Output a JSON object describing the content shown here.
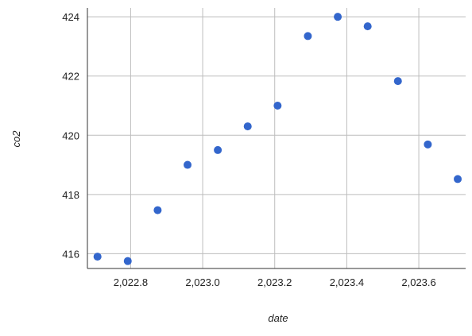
{
  "chart_data": {
    "type": "scatter",
    "title": "",
    "xlabel": "date",
    "ylabel": "co2",
    "xlim": [
      2022.68,
      2023.73
    ],
    "ylim": [
      415.5,
      424.3
    ],
    "grid": true,
    "legend": "none",
    "colors": {
      "point": "#3366cc",
      "grid": "#bdbdbd",
      "axis": "#333333"
    },
    "x_ticks": [
      2022.8,
      2023.0,
      2023.2,
      2023.4,
      2023.6
    ],
    "x_tick_labels": [
      "2,022.8",
      "2,023.0",
      "2,023.2",
      "2,023.4",
      "2,023.6"
    ],
    "y_ticks": [
      416,
      418,
      420,
      422,
      424
    ],
    "y_tick_labels": [
      "416",
      "418",
      "420",
      "422",
      "424"
    ],
    "series": [
      {
        "x": [
          2022.708,
          2022.792,
          2022.875,
          2022.958,
          2023.042,
          2023.125,
          2023.208,
          2023.292,
          2023.375,
          2023.458,
          2023.542,
          2023.625,
          2023.708
        ],
        "y": [
          415.9,
          415.75,
          417.47,
          419.0,
          419.5,
          420.3,
          421.0,
          423.35,
          424.0,
          423.68,
          421.83,
          419.69,
          418.52
        ]
      }
    ]
  }
}
